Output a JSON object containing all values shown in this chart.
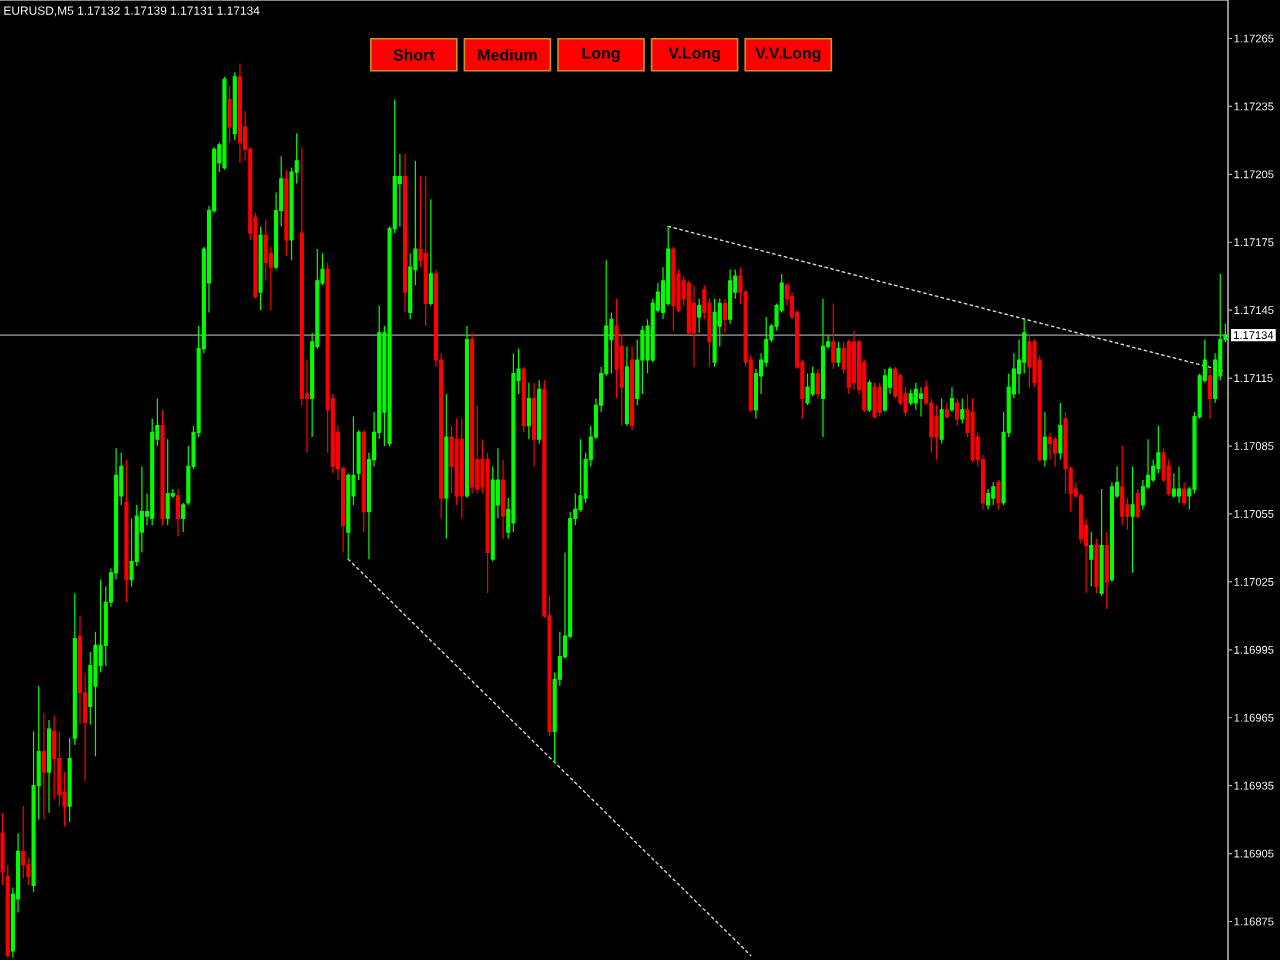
{
  "chart_data": {
    "type": "candlestick",
    "title": "EURUSD,M5 1.17132 1.17139 1.17131 1.17134",
    "annotations": [
      "Short",
      "Medium",
      "Long",
      "V.Long",
      "V.V.Long"
    ],
    "categories": [
      null,
      null,
      null,
      null,
      null,
      null,
      null,
      null,
      null,
      null,
      null,
      null,
      null,
      null,
      null,
      null,
      null,
      null,
      null,
      null,
      null,
      null,
      null,
      null,
      null,
      null,
      null,
      null,
      null,
      null,
      null,
      null,
      null,
      null,
      null,
      null,
      null,
      null,
      null,
      null,
      null,
      null,
      null,
      null,
      null,
      null,
      null,
      null,
      null,
      null,
      null,
      null,
      null,
      null,
      null,
      null,
      null,
      null,
      null,
      null,
      null,
      null,
      null,
      null,
      null,
      null,
      null,
      null,
      null,
      null,
      null,
      null,
      null,
      null,
      null,
      null,
      null,
      null,
      null,
      null,
      null,
      null,
      null,
      null,
      null,
      null,
      null,
      null,
      null,
      null,
      null,
      null,
      null,
      null,
      null,
      null,
      null,
      null,
      null,
      null,
      null,
      null,
      null,
      null,
      null,
      null,
      null,
      null,
      null,
      null,
      null,
      null,
      null,
      null,
      null,
      null,
      null,
      null,
      null,
      null,
      null,
      null,
      null,
      null,
      null,
      null,
      null,
      null,
      null,
      null,
      null,
      null,
      null,
      null,
      null,
      null,
      null,
      null,
      null,
      null,
      null,
      null,
      null,
      null,
      null,
      null,
      null,
      null,
      null,
      null,
      null,
      null,
      null,
      null,
      null,
      null,
      null,
      null,
      null,
      null,
      null,
      null,
      null,
      null,
      null,
      null,
      null,
      null,
      null,
      null,
      null,
      null,
      null,
      null,
      null,
      null,
      null,
      null,
      null,
      null,
      null,
      null,
      null,
      null,
      null,
      null,
      null,
      null,
      null,
      null,
      null,
      null,
      null,
      null,
      null,
      null,
      null,
      null,
      null,
      null,
      null,
      null,
      null,
      null,
      null,
      null,
      null,
      null,
      null,
      null,
      null,
      null,
      null,
      null,
      null,
      null,
      null,
      null,
      null,
      null,
      null,
      null,
      null,
      null,
      null,
      null,
      null,
      null,
      null,
      null,
      null,
      null,
      null,
      null,
      null,
      null,
      null,
      null
    ],
    "ohlc": [
      [
        1.16914,
        1.16923,
        1.16891,
        1.16897
      ],
      [
        1.16895,
        1.169,
        1.16859,
        1.1686
      ],
      [
        1.16862,
        1.1689,
        1.16859,
        1.16887
      ],
      [
        1.16885,
        1.16914,
        1.16879,
        1.16906
      ],
      [
        1.16906,
        1.16926,
        1.16894,
        1.169
      ],
      [
        1.169,
        1.16903,
        1.16891,
        1.16895
      ],
      [
        1.16891,
        1.16959,
        1.16888,
        1.16935
      ],
      [
        1.16935,
        1.16979,
        1.1692,
        1.1695
      ],
      [
        1.1695,
        1.16967,
        1.1692,
        1.16941
      ],
      [
        1.16941,
        1.16964,
        1.16923,
        1.1696
      ],
      [
        1.16959,
        1.16966,
        1.16929,
        1.16947
      ],
      [
        1.16947,
        1.16959,
        1.16926,
        1.16931
      ],
      [
        1.16932,
        1.16941,
        1.16917,
        1.16926
      ],
      [
        1.16926,
        1.16956,
        1.16919,
        1.16947
      ],
      [
        1.16956,
        1.1702,
        1.16953,
        1.17
      ],
      [
        1.17001,
        1.1701,
        1.16962,
        1.16976
      ],
      [
        1.16976,
        1.16985,
        1.16937,
        1.16963
      ],
      [
        1.1697,
        1.16994,
        1.16962,
        1.16988
      ],
      [
        1.16979,
        1.17003,
        1.16948,
        1.16997
      ],
      [
        1.16988,
        1.17026,
        1.16985,
        1.16997
      ],
      [
        1.16997,
        1.17023,
        1.16988,
        1.17016
      ],
      [
        1.17016,
        1.17031,
        1.17014,
        1.17029
      ],
      [
        1.17029,
        1.17084,
        1.17026,
        1.17072
      ],
      [
        1.17063,
        1.17082,
        1.17059,
        1.17076
      ],
      [
        1.1706,
        1.17079,
        1.17016,
        1.17026
      ],
      [
        1.17026,
        1.17053,
        1.17023,
        1.17034
      ],
      [
        1.17034,
        1.17059,
        1.17032,
        1.17054
      ],
      [
        1.17047,
        1.17076,
        1.17038,
        1.17056
      ],
      [
        1.17054,
        1.17064,
        1.1705,
        1.17056
      ],
      [
        1.17053,
        1.17097,
        1.1705,
        1.17091
      ],
      [
        1.17088,
        1.17106,
        1.17085,
        1.17094
      ],
      [
        1.17094,
        1.17101,
        1.1705,
        1.17053
      ],
      [
        1.17053,
        1.17088,
        1.1705,
        1.17064
      ],
      [
        1.17063,
        1.17066,
        1.17062,
        1.17064
      ],
      [
        1.17063,
        1.17066,
        1.17045,
        1.17053
      ],
      [
        1.17053,
        1.1706,
        1.17047,
        1.17059
      ],
      [
        1.1706,
        1.17085,
        1.17059,
        1.17076
      ],
      [
        1.17076,
        1.17094,
        1.17075,
        1.17091
      ],
      [
        1.17091,
        1.17138,
        1.17089,
        1.17128
      ],
      [
        1.17128,
        1.17173,
        1.17126,
        1.17172
      ],
      [
        1.17157,
        1.17191,
        1.17144,
        1.17189
      ],
      [
        1.17189,
        1.17217,
        1.17188,
        1.17216
      ],
      [
        1.1721,
        1.17219,
        1.17206,
        1.17218
      ],
      [
        1.17208,
        1.17248,
        1.17207,
        1.17247
      ],
      [
        1.17238,
        1.17244,
        1.17219,
        1.17226
      ],
      [
        1.17223,
        1.1725,
        1.1722,
        1.17248
      ],
      [
        1.17248,
        1.17254,
        1.1721,
        1.17219
      ],
      [
        1.17226,
        1.17233,
        1.17211,
        1.17216
      ],
      [
        1.17216,
        1.17217,
        1.17176,
        1.17179
      ],
      [
        1.17186,
        1.17188,
        1.1715,
        1.17151
      ],
      [
        1.17153,
        1.17182,
        1.17145,
        1.17178
      ],
      [
        1.17178,
        1.17185,
        1.17158,
        1.17166
      ],
      [
        1.1717,
        1.17173,
        1.17145,
        1.17164
      ],
      [
        1.17164,
        1.17197,
        1.17163,
        1.17189
      ],
      [
        1.17189,
        1.17213,
        1.17182,
        1.17203
      ],
      [
        1.17203,
        1.17207,
        1.17169,
        1.17176
      ],
      [
        1.17176,
        1.17208,
        1.17167,
        1.17206
      ],
      [
        1.17206,
        1.17223,
        1.17201,
        1.17211
      ],
      [
        1.17179,
        1.17217,
        1.17103,
        1.17106
      ],
      [
        1.17108,
        1.17123,
        1.17082,
        1.17106
      ],
      [
        1.17106,
        1.17135,
        1.17089,
        1.17131
      ],
      [
        1.17129,
        1.17172,
        1.17128,
        1.17158
      ],
      [
        1.17157,
        1.1717,
        1.17156,
        1.17163
      ],
      [
        1.17163,
        1.17166,
        1.17082,
        1.17101
      ],
      [
        1.17106,
        1.17108,
        1.17073,
        1.17076
      ],
      [
        1.17091,
        1.17094,
        1.1707,
        1.17075
      ],
      [
        1.17075,
        1.17076,
        1.17038,
        1.1705
      ],
      [
        1.17047,
        1.17073,
        1.17035,
        1.17072
      ],
      [
        1.17063,
        1.17098,
        1.17059,
        1.17072
      ],
      [
        1.17073,
        1.17092,
        1.1707,
        1.17091
      ],
      [
        1.17091,
        1.17092,
        1.17047,
        1.17056
      ],
      [
        1.17056,
        1.17082,
        1.17035,
        1.17079
      ],
      [
        1.17079,
        1.171,
        1.17076,
        1.17091
      ],
      [
        1.17091,
        1.17147,
        1.17088,
        1.17135
      ],
      [
        1.171,
        1.17138,
        1.17085,
        1.17135
      ],
      [
        1.17086,
        1.17182,
        1.17085,
        1.17181
      ],
      [
        1.17181,
        1.17238,
        1.17179,
        1.17204
      ],
      [
        1.17201,
        1.17214,
        1.17182,
        1.17204
      ],
      [
        1.17204,
        1.17214,
        1.17144,
        1.17153
      ],
      [
        1.17144,
        1.1717,
        1.17141,
        1.17164
      ],
      [
        1.17163,
        1.17211,
        1.17156,
        1.17172
      ],
      [
        1.17172,
        1.17204,
        1.17164,
        1.17167
      ],
      [
        1.1717,
        1.17204,
        1.17138,
        1.17148
      ],
      [
        1.17148,
        1.17194,
        1.17147,
        1.17161
      ],
      [
        1.17161,
        1.17163,
        1.1712,
        1.17123
      ],
      [
        1.17123,
        1.17126,
        1.17053,
        1.17062
      ],
      [
        1.17062,
        1.17108,
        1.17044,
        1.17089
      ],
      [
        1.17089,
        1.17094,
        1.17064,
        1.17076
      ],
      [
        1.17088,
        1.17097,
        1.17059,
        1.17063
      ],
      [
        1.17088,
        1.17097,
        1.17053,
        1.17063
      ],
      [
        1.17063,
        1.17138,
        1.17062,
        1.17132
      ],
      [
        1.17132,
        1.17135,
        1.17064,
        1.17067
      ],
      [
        1.17079,
        1.17103,
        1.17064,
        1.17066
      ],
      [
        1.17079,
        1.17088,
        1.17064,
        1.17067
      ],
      [
        1.17079,
        1.17082,
        1.1702,
        1.17038
      ],
      [
        1.17035,
        1.17076,
        1.17034,
        1.1707
      ],
      [
        1.17059,
        1.17084,
        1.17053,
        1.1707
      ],
      [
        1.1707,
        1.17079,
        1.17044,
        1.17054
      ],
      [
        1.17047,
        1.17062,
        1.17044,
        1.17057
      ],
      [
        1.17051,
        1.17126,
        1.17047,
        1.17117
      ],
      [
        1.17114,
        1.17128,
        1.17108,
        1.17119
      ],
      [
        1.17119,
        1.1712,
        1.17091,
        1.17094
      ],
      [
        1.17094,
        1.17113,
        1.17088,
        1.17106
      ],
      [
        1.17106,
        1.17113,
        1.17076,
        1.17088
      ],
      [
        1.17088,
        1.17114,
        1.17086,
        1.1711
      ],
      [
        1.1711,
        1.17114,
        1.17009,
        1.1701
      ],
      [
        1.1701,
        1.17019,
        1.16957,
        1.16959
      ],
      [
        1.16959,
        1.16985,
        1.16945,
        1.16982
      ],
      [
        1.16982,
        1.17003,
        1.16979,
        1.16992
      ],
      [
        1.16992,
        1.17038,
        1.16991,
        1.17001
      ],
      [
        1.17001,
        1.17056,
        1.17,
        1.17053
      ],
      [
        1.17053,
        1.17064,
        1.1705,
        1.17057
      ],
      [
        1.17057,
        1.17088,
        1.17056,
        1.17063
      ],
      [
        1.17062,
        1.17082,
        1.1706,
        1.17079
      ],
      [
        1.17079,
        1.17094,
        1.17076,
        1.17089
      ],
      [
        1.17089,
        1.17106,
        1.17088,
        1.17103
      ],
      [
        1.17103,
        1.1712,
        1.171,
        1.17117
      ],
      [
        1.17117,
        1.17167,
        1.17116,
        1.17138
      ],
      [
        1.17132,
        1.17144,
        1.17117,
        1.17141
      ],
      [
        1.17138,
        1.1715,
        1.17106,
        1.17119
      ],
      [
        1.17129,
        1.17134,
        1.17094,
        1.17111
      ],
      [
        1.17095,
        1.17129,
        1.17094,
        1.1712
      ],
      [
        1.17123,
        1.17129,
        1.17092,
        1.17094
      ],
      [
        1.17106,
        1.17132,
        1.17103,
        1.17123
      ],
      [
        1.17123,
        1.17138,
        1.17108,
        1.17136
      ],
      [
        1.17123,
        1.17141,
        1.17117,
        1.17138
      ],
      [
        1.17123,
        1.1715,
        1.17122,
        1.17148
      ],
      [
        1.17145,
        1.17157,
        1.17144,
        1.17153
      ],
      [
        1.17144,
        1.17164,
        1.17141,
        1.17158
      ],
      [
        1.17148,
        1.17182,
        1.17147,
        1.17172
      ],
      [
        1.17172,
        1.17173,
        1.17136,
        1.17147
      ],
      [
        1.17161,
        1.17163,
        1.17144,
        1.17145
      ],
      [
        1.17158,
        1.1716,
        1.17147,
        1.1715
      ],
      [
        1.17157,
        1.17158,
        1.17134,
        1.17135
      ],
      [
        1.17148,
        1.17156,
        1.1712,
        1.17135
      ],
      [
        1.17142,
        1.1715,
        1.17135,
        1.17147
      ],
      [
        1.17154,
        1.17156,
        1.17141,
        1.17144
      ],
      [
        1.17148,
        1.1715,
        1.1712,
        1.17131
      ],
      [
        1.17122,
        1.1715,
        1.1712,
        1.17144
      ],
      [
        1.17138,
        1.1715,
        1.17129,
        1.17148
      ],
      [
        1.17148,
        1.1715,
        1.17135,
        1.17141
      ],
      [
        1.17141,
        1.17163,
        1.17139,
        1.17158
      ],
      [
        1.17153,
        1.17163,
        1.1715,
        1.1716
      ],
      [
        1.1716,
        1.17164,
        1.17148,
        1.17153
      ],
      [
        1.17153,
        1.17154,
        1.1712,
        1.17122
      ],
      [
        1.17123,
        1.17125,
        1.171,
        1.17101
      ],
      [
        1.17101,
        1.17119,
        1.17097,
        1.17117
      ],
      [
        1.17116,
        1.17126,
        1.17108,
        1.17123
      ],
      [
        1.17122,
        1.17142,
        1.1712,
        1.17132
      ],
      [
        1.17132,
        1.17139,
        1.17131,
        1.17138
      ],
      [
        1.17138,
        1.17148,
        1.17136,
        1.17147
      ],
      [
        1.17145,
        1.17161,
        1.17144,
        1.17157
      ],
      [
        1.17156,
        1.17157,
        1.17147,
        1.1715
      ],
      [
        1.17151,
        1.17153,
        1.17141,
        1.17142
      ],
      [
        1.17144,
        1.17145,
        1.17119,
        1.1712
      ],
      [
        1.17122,
        1.17123,
        1.17097,
        1.17106
      ],
      [
        1.17104,
        1.17117,
        1.17103,
        1.17111
      ],
      [
        1.17108,
        1.1712,
        1.17107,
        1.17117
      ],
      [
        1.17117,
        1.17119,
        1.17106,
        1.17108
      ],
      [
        1.17106,
        1.1715,
        1.17089,
        1.17129
      ],
      [
        1.17129,
        1.17134,
        1.17128,
        1.17131
      ],
      [
        1.17131,
        1.17148,
        1.17119,
        1.17122
      ],
      [
        1.17122,
        1.17131,
        1.1712,
        1.17128
      ],
      [
        1.17128,
        1.17131,
        1.17117,
        1.17119
      ],
      [
        1.17131,
        1.17132,
        1.17108,
        1.17111
      ],
      [
        1.17131,
        1.17136,
        1.1711,
        1.17113
      ],
      [
        1.17131,
        1.17132,
        1.17108,
        1.1711
      ],
      [
        1.17122,
        1.17123,
        1.171,
        1.17101
      ],
      [
        1.17101,
        1.17114,
        1.171,
        1.17113
      ],
      [
        1.17111,
        1.17113,
        1.17097,
        1.17098
      ],
      [
        1.17111,
        1.17113,
        1.17098,
        1.171
      ],
      [
        1.17101,
        1.17119,
        1.171,
        1.17116
      ],
      [
        1.17111,
        1.1712,
        1.17108,
        1.17119
      ],
      [
        1.17119,
        1.1712,
        1.17106,
        1.17107
      ],
      [
        1.17116,
        1.17117,
        1.17103,
        1.17104
      ],
      [
        1.17108,
        1.17111,
        1.17098,
        1.171
      ],
      [
        1.17104,
        1.1711,
        1.17103,
        1.17108
      ],
      [
        1.17104,
        1.17113,
        1.17101,
        1.1711
      ],
      [
        1.17106,
        1.17111,
        1.17098,
        1.17108
      ],
      [
        1.17111,
        1.17114,
        1.17103,
        1.17104
      ],
      [
        1.17104,
        1.17106,
        1.17082,
        1.17089
      ],
      [
        1.17098,
        1.17103,
        1.17079,
        1.17089
      ],
      [
        1.17088,
        1.17106,
        1.17086,
        1.17101
      ],
      [
        1.17101,
        1.17104,
        1.17097,
        1.17098
      ],
      [
        1.17101,
        1.17111,
        1.171,
        1.17106
      ],
      [
        1.17104,
        1.17106,
        1.17094,
        1.17097
      ],
      [
        1.17097,
        1.17106,
        1.17095,
        1.17101
      ],
      [
        1.17101,
        1.17108,
        1.17089,
        1.17091
      ],
      [
        1.171,
        1.17106,
        1.17078,
        1.17079
      ],
      [
        1.17089,
        1.17091,
        1.17076,
        1.17079
      ],
      [
        1.17079,
        1.17081,
        1.17057,
        1.1706
      ],
      [
        1.17059,
        1.17066,
        1.17057,
        1.17064
      ],
      [
        1.17062,
        1.17069,
        1.17059,
        1.17067
      ],
      [
        1.17069,
        1.1707,
        1.17057,
        1.1706
      ],
      [
        1.1706,
        1.171,
        1.17059,
        1.17091
      ],
      [
        1.17091,
        1.17117,
        1.17089,
        1.17111
      ],
      [
        1.17108,
        1.17126,
        1.17106,
        1.17119
      ],
      [
        1.17117,
        1.17132,
        1.17108,
        1.17123
      ],
      [
        1.17122,
        1.17141,
        1.17117,
        1.17135
      ],
      [
        1.17131,
        1.17134,
        1.17111,
        1.1712
      ],
      [
        1.17131,
        1.17132,
        1.17111,
        1.17113
      ],
      [
        1.17123,
        1.17125,
        1.17078,
        1.17079
      ],
      [
        1.17079,
        1.171,
        1.17076,
        1.17089
      ],
      [
        1.17089,
        1.17091,
        1.17079,
        1.17086
      ],
      [
        1.17088,
        1.17089,
        1.17076,
        1.17082
      ],
      [
        1.17082,
        1.17104,
        1.17079,
        1.17094
      ],
      [
        1.17097,
        1.171,
        1.17064,
        1.17075
      ],
      [
        1.17075,
        1.17076,
        1.17056,
        1.17064
      ],
      [
        1.17066,
        1.17069,
        1.17062,
        1.17063
      ],
      [
        1.17063,
        1.17064,
        1.17042,
        1.17044
      ],
      [
        1.1705,
        1.17053,
        1.1702,
        1.17041
      ],
      [
        1.17035,
        1.17047,
        1.17023,
        1.17041
      ],
      [
        1.17041,
        1.17044,
        1.1702,
        1.17023
      ],
      [
        1.1702,
        1.17066,
        1.17019,
        1.17041
      ],
      [
        1.17041,
        1.17047,
        1.17013,
        1.17025
      ],
      [
        1.17026,
        1.17069,
        1.17025,
        1.17067
      ],
      [
        1.17063,
        1.17076,
        1.17062,
        1.17069
      ],
      [
        1.17067,
        1.17085,
        1.1705,
        1.17054
      ],
      [
        1.17059,
        1.17062,
        1.17048,
        1.17054
      ],
      [
        1.17054,
        1.17076,
        1.17029,
        1.17059
      ],
      [
        1.17064,
        1.17066,
        1.17053,
        1.17054
      ],
      [
        1.17059,
        1.1707,
        1.17057,
        1.17067
      ],
      [
        1.17067,
        1.17088,
        1.17066,
        1.17072
      ],
      [
        1.1707,
        1.17079,
        1.17069,
        1.17076
      ],
      [
        1.17075,
        1.17094,
        1.17073,
        1.17082
      ],
      [
        1.17082,
        1.17084,
        1.17069,
        1.1707
      ],
      [
        1.17076,
        1.17079,
        1.17063,
        1.17064
      ],
      [
        1.17063,
        1.17073,
        1.17062,
        1.17066
      ],
      [
        1.17063,
        1.17076,
        1.1706,
        1.17066
      ],
      [
        1.17066,
        1.17069,
        1.17059,
        1.1706
      ],
      [
        1.17063,
        1.17067,
        1.17057,
        1.17066
      ],
      [
        1.17066,
        1.171,
        1.17064,
        1.17098
      ],
      [
        1.17098,
        1.17117,
        1.17097,
        1.17116
      ],
      [
        1.17114,
        1.17132,
        1.17113,
        1.17123
      ],
      [
        1.17116,
        1.17119,
        1.17097,
        1.17106
      ],
      [
        1.17106,
        1.17126,
        1.17104,
        1.17123
      ],
      [
        1.17116,
        1.17161,
        1.17114,
        1.17132
      ],
      [
        1.17132,
        1.17139,
        1.17131,
        1.17134
      ]
    ],
    "colors": [
      "#ff0000",
      "#ff0000",
      "#00ff00",
      "#00ff00",
      "#ff0000",
      "#ff0000",
      "#00ff00",
      "#00ff00",
      "#ff0000",
      "#00ff00",
      "#ff0000",
      "#ff0000",
      "#ff0000",
      "#00ff00",
      "#00ff00",
      "#ff0000",
      "#ff0000",
      "#00ff00",
      "#00ff00",
      "#00ff00",
      "#00ff00",
      "#00ff00",
      "#00ff00",
      "#00ff00",
      "#ff0000",
      "#00ff00",
      "#00ff00",
      "#00ff00",
      "#00ff00",
      "#00ff00",
      "#00ff00",
      "#ff0000",
      "#00ff00",
      "#00ff00",
      "#ff0000",
      "#00ff00",
      "#00ff00",
      "#00ff00",
      "#00ff00",
      "#00ff00",
      "#00ff00",
      "#00ff00",
      "#00ff00",
      "#00ff00",
      "#ff0000",
      "#00ff00",
      "#ff0000",
      "#ff0000",
      "#ff0000",
      "#ff0000",
      "#00ff00",
      "#ff0000",
      "#ff0000",
      "#00ff00",
      "#00ff00",
      "#ff0000",
      "#00ff00",
      "#00ff00",
      "#ff0000",
      "#ff0000",
      "#00ff00",
      "#00ff00",
      "#00ff00",
      "#ff0000",
      "#ff0000",
      "#ff0000",
      "#ff0000",
      "#00ff00",
      "#00ff00",
      "#00ff00",
      "#ff0000",
      "#00ff00",
      "#00ff00",
      "#00ff00",
      "#00ff00",
      "#00ff00",
      "#00ff00",
      "#00ff00",
      "#ff0000",
      "#00ff00",
      "#00ff00",
      "#ff0000",
      "#ff0000",
      "#00ff00",
      "#ff0000",
      "#ff0000",
      "#00ff00",
      "#ff0000",
      "#ff0000",
      "#ff0000",
      "#00ff00",
      "#ff0000",
      "#ff0000",
      "#ff0000",
      "#ff0000",
      "#00ff00",
      "#00ff00",
      "#ff0000",
      "#00ff00",
      "#00ff00",
      "#00ff00",
      "#ff0000",
      "#00ff00",
      "#ff0000",
      "#00ff00",
      "#ff0000",
      "#ff0000",
      "#00ff00",
      "#00ff00",
      "#00ff00",
      "#00ff00",
      "#00ff00",
      "#00ff00",
      "#00ff00",
      "#00ff00",
      "#00ff00",
      "#00ff00",
      "#00ff00",
      "#00ff00",
      "#ff0000",
      "#ff0000",
      "#00ff00",
      "#ff0000",
      "#00ff00",
      "#00ff00",
      "#00ff00",
      "#00ff00",
      "#00ff00",
      "#00ff00",
      "#00ff00",
      "#ff0000",
      "#ff0000",
      "#ff0000",
      "#ff0000",
      "#ff0000",
      "#00ff00",
      "#ff0000",
      "#ff0000",
      "#00ff00",
      "#00ff00",
      "#ff0000",
      "#00ff00",
      "#00ff00",
      "#ff0000",
      "#ff0000",
      "#ff0000",
      "#00ff00",
      "#00ff00",
      "#00ff00",
      "#00ff00",
      "#00ff00",
      "#00ff00",
      "#ff0000",
      "#ff0000",
      "#ff0000",
      "#ff0000",
      "#00ff00",
      "#00ff00",
      "#ff0000",
      "#00ff00",
      "#00ff00",
      "#ff0000",
      "#00ff00",
      "#ff0000",
      "#ff0000",
      "#ff0000",
      "#ff0000",
      "#ff0000",
      "#00ff00",
      "#ff0000",
      "#ff0000",
      "#00ff00",
      "#00ff00",
      "#ff0000",
      "#ff0000",
      "#ff0000",
      "#00ff00",
      "#00ff00",
      "#00ff00",
      "#ff0000",
      "#ff0000",
      "#ff0000",
      "#00ff00",
      "#ff0000",
      "#00ff00",
      "#ff0000",
      "#00ff00",
      "#ff0000",
      "#ff0000",
      "#ff0000",
      "#ff0000",
      "#00ff00",
      "#00ff00",
      "#ff0000",
      "#00ff00",
      "#00ff00",
      "#00ff00",
      "#00ff00",
      "#00ff00",
      "#ff0000",
      "#ff0000",
      "#ff0000",
      "#00ff00",
      "#ff0000",
      "#ff0000",
      "#00ff00",
      "#ff0000",
      "#ff0000",
      "#ff0000",
      "#ff0000",
      "#ff0000",
      "#00ff00",
      "#ff0000",
      "#00ff00",
      "#ff0000",
      "#00ff00",
      "#00ff00",
      "#ff0000",
      "#ff0000",
      "#00ff00",
      "#ff0000",
      "#00ff00",
      "#00ff00",
      "#00ff00",
      "#00ff00",
      "#ff0000",
      "#ff0000",
      "#00ff00",
      "#00ff00",
      "#ff0000",
      "#00ff00",
      "#00ff00",
      "#00ff00",
      "#00ff00",
      "#ff0000",
      "#00ff00",
      "#00ff00",
      "#00ff00"
    ],
    "series": [
      {
        "type": "line",
        "color": "#d8d8d8",
        "line_style": "dotted",
        "values": [
          null,
          null,
          null,
          null,
          null,
          null,
          null,
          null,
          null,
          null,
          null,
          null,
          null,
          null,
          null,
          null,
          null,
          null,
          null,
          null,
          null,
          null,
          null,
          null,
          null,
          null,
          null,
          null,
          null,
          null,
          null,
          null,
          null,
          null,
          null,
          null,
          null,
          null,
          null,
          null,
          null,
          null,
          null,
          null,
          null,
          null,
          null,
          null,
          null,
          null,
          null,
          null,
          null,
          null,
          null,
          null,
          null,
          null,
          null,
          null,
          null,
          null,
          null,
          null,
          null,
          null,
          null,
          1.17035,
          null,
          null,
          null,
          null,
          null,
          null,
          null,
          null,
          null,
          null,
          null,
          null,
          null,
          null,
          null,
          null,
          null,
          null,
          null,
          null,
          null,
          null,
          null,
          null,
          null,
          null,
          null,
          null,
          null,
          null,
          null,
          null,
          null,
          null,
          null,
          null,
          null,
          null,
          null,
          null,
          null,
          null,
          null,
          null,
          null,
          null,
          null,
          null,
          null,
          null,
          null,
          null,
          null,
          null,
          null,
          null,
          null,
          null,
          null,
          null,
          null,
          null,
          null,
          null,
          null,
          null,
          null,
          null,
          null,
          null,
          null,
          null,
          null,
          null,
          null,
          null,
          null,
          1.1686,
          null,
          null,
          null,
          null,
          null,
          null,
          null,
          null,
          null,
          null,
          null,
          null,
          null,
          null,
          null,
          null,
          null,
          null,
          null,
          null,
          null,
          null,
          null,
          null,
          null,
          null,
          null,
          null,
          null,
          null,
          null,
          null,
          null,
          null,
          null,
          null,
          null,
          null,
          null,
          null,
          null,
          null,
          null,
          null,
          null,
          null,
          null,
          null,
          null,
          null,
          null,
          null,
          null,
          null,
          null,
          null,
          null,
          null,
          null,
          null,
          null,
          null,
          null,
          null,
          null,
          null,
          null,
          null,
          null,
          null,
          null,
          null,
          null,
          null,
          null,
          null,
          null,
          null,
          null,
          null,
          null,
          null,
          null,
          null,
          null,
          null,
          null,
          null,
          null,
          null,
          null,
          null
        ]
      },
      {
        "type": "line",
        "color": "#d8d8d8",
        "line_style": "dotted",
        "values": [
          null,
          null,
          null,
          null,
          null,
          null,
          null,
          null,
          null,
          null,
          null,
          null,
          null,
          null,
          null,
          null,
          null,
          null,
          null,
          null,
          null,
          null,
          null,
          null,
          null,
          null,
          null,
          null,
          null,
          null,
          null,
          null,
          null,
          null,
          null,
          null,
          null,
          null,
          null,
          null,
          null,
          null,
          null,
          null,
          null,
          null,
          null,
          null,
          null,
          null,
          null,
          null,
          null,
          null,
          null,
          null,
          null,
          null,
          null,
          null,
          null,
          null,
          null,
          null,
          null,
          null,
          null,
          null,
          null,
          null,
          null,
          null,
          null,
          null,
          null,
          null,
          null,
          null,
          null,
          null,
          null,
          null,
          null,
          null,
          null,
          null,
          null,
          null,
          null,
          null,
          null,
          null,
          null,
          null,
          null,
          null,
          null,
          null,
          null,
          null,
          null,
          null,
          null,
          null,
          null,
          null,
          null,
          null,
          null,
          null,
          null,
          null,
          null,
          null,
          null,
          null,
          null,
          null,
          null,
          null,
          null,
          null,
          null,
          null,
          null,
          null,
          null,
          null,
          null,
          1.17182,
          null,
          null,
          null,
          null,
          null,
          null,
          null,
          null,
          null,
          null,
          null,
          null,
          null,
          null,
          null,
          null,
          null,
          null,
          null,
          null,
          null,
          null,
          null,
          null,
          null,
          null,
          null,
          null,
          null,
          null,
          null,
          null,
          null,
          null,
          null,
          null,
          null,
          null,
          null,
          null,
          null,
          null,
          null,
          null,
          null,
          null,
          null,
          null,
          null,
          null,
          null,
          null,
          null,
          null,
          null,
          null,
          null,
          null,
          null,
          null,
          null,
          null,
          null,
          null,
          null,
          null,
          null,
          null,
          null,
          null,
          null,
          null,
          null,
          null,
          null,
          null,
          null,
          null,
          null,
          null,
          null,
          null,
          null,
          null,
          null,
          null,
          null,
          null,
          null,
          null,
          null,
          null,
          null,
          null,
          null,
          null,
          null,
          null,
          null,
          null,
          null,
          null,
          null,
          null,
          null,
          null,
          null,
          1.17118
        ]
      }
    ],
    "ylim": [
      1.16858,
      1.17282
    ],
    "yticks": [
      1.16875,
      1.16905,
      1.16935,
      1.16965,
      1.16995,
      1.17025,
      1.17055,
      1.17085,
      1.17115,
      1.17145,
      1.17175,
      1.17205,
      1.17235,
      1.17265
    ],
    "ref_lines": [
      {
        "axis": "y",
        "value": 1.17134,
        "label": "1.17134",
        "color": "#a0a0a0"
      }
    ],
    "tick_labels": "y"
  }
}
